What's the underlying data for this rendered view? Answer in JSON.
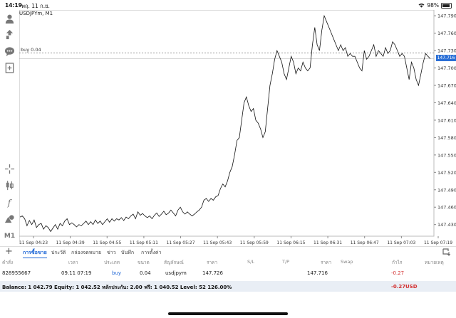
{
  "status": {
    "time": "14:19",
    "date": "พฤ. 11 ก.ย.",
    "battery": "98%"
  },
  "toolbar": {
    "timeframe": "M1"
  },
  "chart_data": {
    "type": "line",
    "symbol": "USDJPYm, M1",
    "buy_label": "buy 0.04",
    "current_price": "147.716",
    "ylim": [
      147.41,
      147.8
    ],
    "y_ticks": [
      "147.790",
      "147.760",
      "147.730",
      "147.700",
      "147.670",
      "147.640",
      "147.610",
      "147.580",
      "147.550",
      "147.520",
      "147.490",
      "147.460",
      "147.430"
    ],
    "x_ticks": [
      "11 Sep 04:23",
      "11 Sep 04:39",
      "11 Sep 04:55",
      "11 Sep 05:11",
      "11 Sep 05:27",
      "11 Sep 05:43",
      "11 Sep 05:59",
      "11 Sep 06:15",
      "11 Sep 06:31",
      "11 Sep 06:47",
      "11 Sep 07:03",
      "11 Sep 07:19"
    ],
    "buy_price": 147.726,
    "values": [
      147.443,
      147.445,
      147.44,
      147.428,
      147.437,
      147.43,
      147.438,
      147.425,
      147.43,
      147.432,
      147.422,
      147.428,
      147.425,
      147.418,
      147.424,
      147.43,
      147.422,
      147.432,
      147.428,
      147.436,
      147.44,
      147.43,
      147.433,
      147.43,
      147.426,
      147.43,
      147.428,
      147.432,
      147.436,
      147.43,
      147.435,
      147.43,
      147.438,
      147.432,
      147.436,
      147.43,
      147.435,
      147.44,
      147.434,
      147.44,
      147.436,
      147.44,
      147.438,
      147.442,
      147.437,
      147.443,
      147.44,
      147.445,
      147.448,
      147.44,
      147.452,
      147.446,
      147.449,
      147.445,
      147.442,
      147.445,
      147.44,
      147.446,
      147.45,
      147.444,
      147.448,
      147.453,
      147.447,
      147.45,
      147.455,
      147.45,
      147.445,
      147.455,
      147.46,
      147.452,
      147.448,
      147.452,
      147.448,
      147.445,
      147.448,
      147.452,
      147.455,
      147.46,
      147.472,
      147.475,
      147.47,
      147.475,
      147.472,
      147.478,
      147.48,
      147.492,
      147.5,
      147.495,
      147.505,
      147.52,
      147.53,
      147.55,
      147.575,
      147.58,
      147.61,
      147.64,
      147.65,
      147.635,
      147.625,
      147.63,
      147.61,
      147.605,
      147.595,
      147.58,
      147.59,
      147.63,
      147.67,
      147.69,
      147.715,
      147.73,
      147.72,
      147.71,
      147.69,
      147.68,
      147.7,
      147.72,
      147.71,
      147.69,
      147.7,
      147.695,
      147.71,
      147.7,
      147.695,
      147.7,
      147.74,
      147.77,
      147.74,
      147.73,
      147.765,
      147.79,
      147.78,
      147.77,
      147.76,
      147.75,
      147.74,
      147.73,
      147.74,
      147.73,
      147.735,
      147.72,
      147.725,
      147.72,
      147.72,
      147.71,
      147.7,
      147.695,
      147.73,
      147.715,
      147.72,
      147.73,
      147.74,
      147.72,
      147.73,
      147.725,
      147.72,
      147.735,
      147.725,
      147.73,
      147.745,
      147.74,
      147.73,
      147.72,
      147.725,
      147.72,
      147.7,
      147.68,
      147.71,
      147.7,
      147.68,
      147.67,
      147.69,
      147.71,
      147.725,
      147.72,
      147.716
    ]
  },
  "tabs": [
    "การซื้อขาย",
    "ประวัติ",
    "กล่องจดหมาย",
    "ข่าว",
    "บันทึก",
    "การตั้งค่า"
  ],
  "table": {
    "headers": [
      "คำสั่ง",
      "เวลา",
      "ประเภท",
      "ขนาด",
      "สัญลักษณ์",
      "ราคา",
      "S/L",
      "T/P",
      "ราคา",
      "Swap",
      "กำไร",
      "หมายเหตุ"
    ],
    "row": {
      "ticket": "828955667",
      "time": "09.11 07:19",
      "type": "buy",
      "size": "0.04",
      "symbol": "usdjpym",
      "open_price": "147.726",
      "current_price": "147.716",
      "profit": "-0.27"
    }
  },
  "balance": {
    "summary": "Balance: 1 042.79 Equity: 1 042.52 หลักประกัน: 2.00 ฟรี: 1 040.52 Level: 52 126.00%",
    "profit": "-0.27",
    "currency": "USD"
  }
}
